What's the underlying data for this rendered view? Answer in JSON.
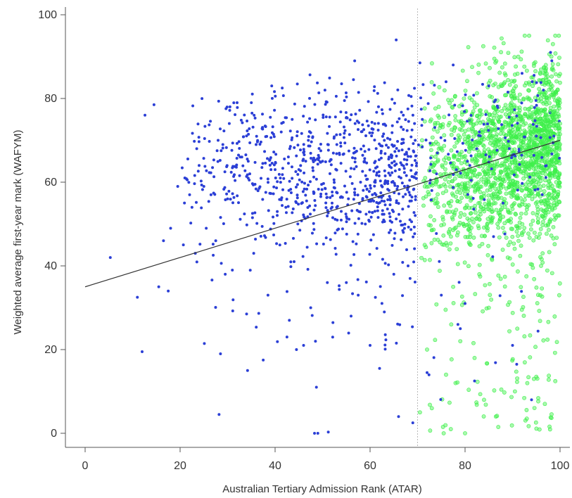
{
  "chart_data": {
    "type": "scatter",
    "title": "",
    "xlabel": "Australian Tertiary Admission Rank (ATAR)",
    "ylabel": "Weighted average first-year mark (WAFYM)",
    "xlim": [
      0,
      100
    ],
    "ylim": [
      0,
      100
    ],
    "xticks": [
      "0",
      "20",
      "40",
      "60",
      "80",
      "100"
    ],
    "yticks": [
      "0",
      "20",
      "40",
      "60",
      "80",
      "100"
    ],
    "grid": false,
    "legend": "none",
    "cutoff_line": {
      "x": 70,
      "style": "dotted",
      "color": "#b8b8b8"
    },
    "trend_line": {
      "x": [
        0,
        100
      ],
      "y": [
        35,
        70
      ],
      "color": "#333333"
    },
    "series": [
      {
        "color": "#2b3fd6",
        "marker": "filled-dot",
        "x_range": [
          5,
          100
        ],
        "points": [
          [
            5.3,
            42
          ],
          [
            11,
            32.5
          ],
          [
            12,
            19.5
          ],
          [
            12.6,
            76
          ],
          [
            14.5,
            78.5
          ],
          [
            15.5,
            35
          ],
          [
            16.5,
            46
          ],
          [
            17.5,
            34
          ],
          [
            18,
            49
          ],
          [
            19.5,
            59
          ],
          [
            21,
            61
          ],
          [
            22,
            57
          ],
          [
            22.5,
            54
          ],
          [
            23.2,
            43
          ],
          [
            23.5,
            68
          ],
          [
            24,
            64
          ],
          [
            25,
            59
          ],
          [
            25.5,
            49
          ],
          [
            26.5,
            57
          ],
          [
            27.5,
            46
          ],
          [
            28,
            70
          ],
          [
            28.2,
            4.5
          ],
          [
            28.5,
            19
          ],
          [
            29,
            69
          ],
          [
            29.5,
            38
          ],
          [
            30,
            56
          ],
          [
            30.5,
            78
          ],
          [
            31,
            39
          ],
          [
            32,
            79
          ],
          [
            33,
            66
          ],
          [
            34,
            28.5
          ],
          [
            34.2,
            15
          ],
          [
            35,
            79
          ],
          [
            35.5,
            43
          ],
          [
            36,
            69
          ],
          [
            37.5,
            17.5
          ],
          [
            38.5,
            33
          ],
          [
            39,
            75.5
          ],
          [
            40,
            63
          ],
          [
            41,
            45
          ],
          [
            41.5,
            82.5
          ],
          [
            42.5,
            23
          ],
          [
            43,
            27
          ],
          [
            44,
            41
          ],
          [
            44.5,
            20
          ],
          [
            45,
            63
          ],
          [
            46,
            21
          ],
          [
            47,
            70
          ],
          [
            47.5,
            30
          ],
          [
            48.3,
            0
          ],
          [
            48.5,
            22
          ],
          [
            48.7,
            11
          ],
          [
            49,
            0
          ],
          [
            50,
            65
          ],
          [
            50.5,
            82
          ],
          [
            51,
            36
          ],
          [
            51.2,
            0.3
          ],
          [
            52,
            55
          ],
          [
            53,
            69
          ],
          [
            54,
            83.5
          ],
          [
            55,
            36
          ],
          [
            56,
            28
          ],
          [
            56.5,
            84.5
          ],
          [
            57.5,
            33
          ],
          [
            58,
            60
          ],
          [
            59,
            50
          ],
          [
            60,
            21
          ],
          [
            61,
            74
          ],
          [
            62,
            15.5
          ],
          [
            63,
            29
          ],
          [
            63,
            70
          ],
          [
            64,
            66
          ],
          [
            65,
            38
          ],
          [
            65.5,
            94
          ],
          [
            66,
            4
          ],
          [
            66.5,
            61
          ],
          [
            67,
            76
          ],
          [
            68,
            40
          ],
          [
            69,
            2.5
          ],
          [
            69.5,
            70
          ],
          [
            70.5,
            88.5
          ],
          [
            71,
            75
          ],
          [
            72,
            14.5
          ],
          [
            73,
            58
          ],
          [
            74,
            62
          ],
          [
            75,
            33
          ],
          [
            76,
            84
          ],
          [
            77.5,
            88
          ],
          [
            78.5,
            26
          ],
          [
            79,
            25
          ],
          [
            80,
            31
          ],
          [
            80.5,
            65
          ],
          [
            81,
            64
          ],
          [
            82,
            12.5
          ],
          [
            83,
            72
          ],
          [
            85,
            83
          ],
          [
            86,
            47
          ],
          [
            88,
            55
          ],
          [
            90,
            21
          ],
          [
            92,
            86
          ],
          [
            94,
            8
          ],
          [
            95,
            71
          ],
          [
            96.5,
            82
          ],
          [
            98,
            91
          ]
        ]
      },
      {
        "color": "#3df04a",
        "marker": "open-circle",
        "x_range": [
          70,
          100
        ],
        "points": [
          [
            70.5,
            5
          ],
          [
            71.5,
            45
          ],
          [
            72,
            20
          ],
          [
            73,
            6
          ],
          [
            74,
            55
          ],
          [
            75,
            68
          ],
          [
            75.5,
            0
          ],
          [
            76,
            14
          ],
          [
            77,
            1
          ],
          [
            77.5,
            35
          ],
          [
            78,
            12
          ],
          [
            78.5,
            48
          ],
          [
            79,
            22
          ],
          [
            80,
            0
          ],
          [
            80.5,
            62
          ],
          [
            81,
            75
          ],
          [
            82,
            18
          ],
          [
            83,
            38
          ],
          [
            84,
            8
          ],
          [
            85,
            30
          ],
          [
            85.5,
            70
          ],
          [
            86,
            56
          ],
          [
            86.5,
            4
          ],
          [
            87,
            1.5
          ],
          [
            88,
            66
          ],
          [
            89,
            42
          ],
          [
            90,
            80
          ],
          [
            90.5,
            10
          ],
          [
            91,
            25
          ],
          [
            92,
            58
          ],
          [
            93,
            3.5
          ],
          [
            93.5,
            72
          ],
          [
            94,
            85
          ],
          [
            94.5,
            13
          ],
          [
            95,
            13.5
          ],
          [
            95.5,
            64
          ],
          [
            96,
            40
          ],
          [
            97,
            88
          ],
          [
            97.5,
            50
          ],
          [
            98,
            77
          ],
          [
            98.5,
            93
          ],
          [
            99,
            95
          ],
          [
            99.2,
            60
          ],
          [
            99.5,
            82
          ],
          [
            100,
            74
          ]
        ]
      }
    ]
  }
}
